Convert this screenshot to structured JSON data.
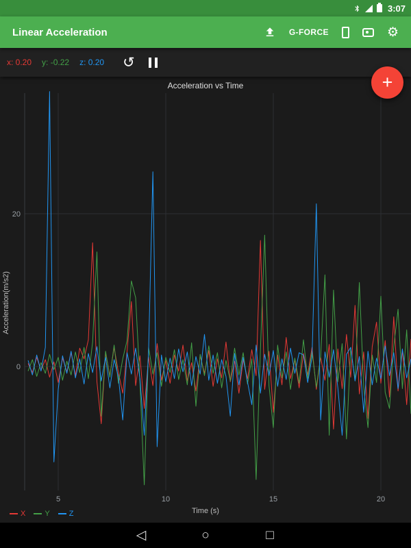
{
  "status_bar": {
    "time": "3:07"
  },
  "app_bar": {
    "title": "Linear Acceleration",
    "g_force_label": "G-FORCE"
  },
  "readouts": {
    "x": "x: 0.20",
    "y": "y: -0.22",
    "z": "z: 0.20"
  },
  "fab": {
    "label": "+"
  },
  "icons": {
    "gear": "⚙",
    "refresh": "↺",
    "back": "◁",
    "home": "○",
    "recents": "□"
  },
  "colors": {
    "status_bar": "#388E3C",
    "app_bar": "#4CAF50",
    "fab": "#F44336",
    "background": "#1b1b1b",
    "x_series": "#E53935",
    "y_series": "#43A047",
    "z_series": "#2196F3"
  },
  "chart_data": {
    "type": "line",
    "title": "Acceleration vs Time",
    "xlabel": "Time (s)",
    "ylabel": "Acceleration(m/s2)",
    "xlim": [
      3.4,
      21.4
    ],
    "ylim": [
      -16,
      38
    ],
    "x_ticks": [
      5,
      10,
      15,
      20
    ],
    "y_ticks": [
      0,
      20
    ],
    "grid": true,
    "legend_position": "bottom-left",
    "legend": [
      "X",
      "Y",
      "Z"
    ],
    "time": {
      "start": 3.6,
      "step": 0.2,
      "count": 90
    },
    "series": [
      {
        "name": "X",
        "color": "#E53935",
        "values": [
          0.4,
          -0.8,
          1.2,
          -0.5,
          0.9,
          -1.4,
          0.6,
          -2.1,
          1.1,
          -0.7,
          1.8,
          -1.2,
          2.4,
          1.0,
          3.5,
          16.2,
          -2.0,
          -7.5,
          1.8,
          -1.2,
          2.5,
          -0.8,
          -3.5,
          2.0,
          8.5,
          -2.5,
          1.4,
          -5.5,
          1.2,
          -2.5,
          3.0,
          -1.8,
          0.8,
          -2.2,
          1.5,
          -0.6,
          2.8,
          -1.9,
          0.5,
          -3.2,
          1.4,
          -0.9,
          2.1,
          -2.6,
          1.0,
          -1.5,
          3.2,
          -2.0,
          0.7,
          -3.5,
          0.9,
          -1.6,
          2.2,
          -1.2,
          16.5,
          -3.0,
          2.0,
          -6.0,
          1.5,
          -2.4,
          3.8,
          -1.6,
          0.9,
          -2.8,
          1.7,
          -1.1,
          2.5,
          -3.0,
          1.2,
          -1.8,
          2.9,
          -8.2,
          2.3,
          -2.9,
          4.2,
          -1.4,
          8.0,
          -3.6,
          1.9,
          -6.8,
          2.6,
          5.8,
          -2.2,
          3.4,
          -4.0,
          6.5,
          -3.2,
          2.1,
          -5.0,
          3.6
        ]
      },
      {
        "name": "Y",
        "color": "#43A047",
        "values": [
          -0.6,
          0.9,
          -1.3,
          0.5,
          -0.9,
          1.6,
          -0.4,
          1.2,
          -1.8,
          0.7,
          -1.1,
          1.9,
          -0.8,
          2.5,
          -1.6,
          3.2,
          15.0,
          -6.5,
          2.0,
          -1.4,
          2.8,
          -2.2,
          1.0,
          3.4,
          11.2,
          9.0,
          -2.0,
          -15.5,
          2.5,
          -1.0,
          1.8,
          -2.6,
          1.2,
          -0.8,
          2.2,
          -1.7,
          0.9,
          -2.4,
          3.1,
          -5.2,
          1.6,
          -1.2,
          2.7,
          -0.9,
          1.8,
          -2.8,
          0.8,
          -1.9,
          2.4,
          -1.1,
          1.8,
          -2.3,
          1.0,
          -14.8,
          2.2,
          17.2,
          -2.5,
          -8.0,
          2.8,
          -1.5,
          1.9,
          -3.0,
          1.1,
          -2.2,
          3.5,
          -1.6,
          2.0,
          -2.7,
          1.3,
          12.0,
          -9.0,
          10.0,
          -2.0,
          3.0,
          -9.5,
          2.4,
          -1.8,
          11.0,
          -2.6,
          -8.0,
          1.5,
          -2.1,
          9.2,
          -3.4,
          -5.5,
          2.6,
          7.5,
          -2.9,
          4.8,
          -6.2
        ]
      },
      {
        "name": "Z",
        "color": "#2196F3",
        "values": [
          0.8,
          -1.1,
          1.5,
          -0.6,
          2.5,
          36.0,
          -12.5,
          -3.0,
          1.4,
          -0.9,
          2.0,
          -1.5,
          1.0,
          -2.3,
          1.7,
          -0.8,
          2.6,
          -1.9,
          1.2,
          -2.8,
          0.9,
          -1.4,
          -7.0,
          1.8,
          -1.0,
          2.4,
          -1.6,
          -9.0,
          2.0,
          25.5,
          -10.5,
          1.5,
          -2.0,
          1.1,
          -1.6,
          2.3,
          -0.7,
          1.9,
          -2.5,
          1.3,
          -1.0,
          4.2,
          -1.8,
          1.5,
          -2.2,
          0.9,
          -1.3,
          -6.5,
          1.7,
          -2.4,
          1.2,
          -2.0,
          -5.0,
          2.8,
          -3.5,
          1.6,
          -1.2,
          2.1,
          -2.6,
          1.0,
          -1.7,
          2.4,
          -0.9,
          1.8,
          1.5,
          -2.1,
          1.2,
          21.3,
          -7.0,
          1.9,
          -1.4,
          2.2,
          -2.8,
          -9.0,
          1.6,
          2.5,
          -1.9,
          1.3,
          -6.0,
          2.0,
          -2.4,
          1.1,
          -1.6,
          2.7,
          -1.2,
          1.8,
          -2.9,
          2.3,
          -1.5,
          1.0
        ]
      }
    ]
  }
}
